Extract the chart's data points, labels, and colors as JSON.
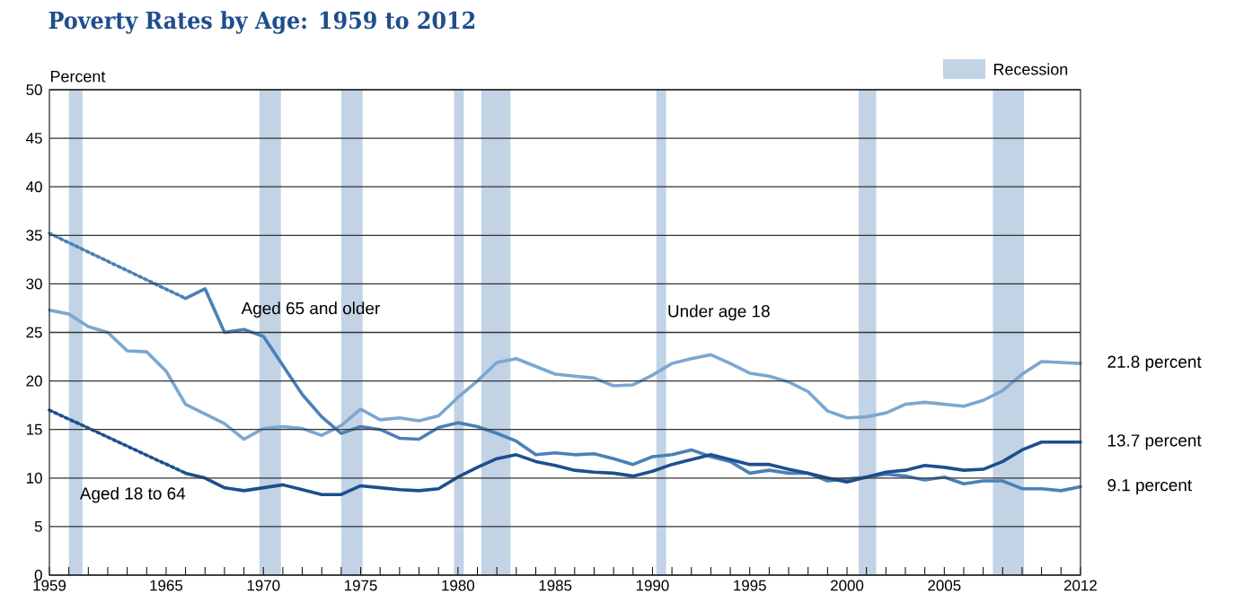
{
  "chart_data": {
    "type": "line",
    "title": "Poverty Rates by Age: 1959 to 2012",
    "ylabel": "Percent",
    "xlim": [
      1959,
      2012
    ],
    "ylim": [
      0,
      50
    ],
    "yticks": [
      0,
      5,
      10,
      15,
      20,
      25,
      30,
      35,
      40,
      45,
      50
    ],
    "xticks": [
      1959,
      {
        "value": 1960,
        "label": null
      },
      {
        "value": 1961,
        "label": null
      },
      {
        "value": 1962,
        "label": null
      },
      {
        "value": 1963,
        "label": null
      },
      {
        "value": 1964,
        "label": null
      },
      1965,
      {
        "value": 1966,
        "label": null
      },
      {
        "value": 1967,
        "label": null
      },
      {
        "value": 1968,
        "label": null
      },
      {
        "value": 1969,
        "label": null
      },
      1970,
      {
        "value": 1971,
        "label": null
      },
      {
        "value": 1972,
        "label": null
      },
      {
        "value": 1973,
        "label": null
      },
      {
        "value": 1974,
        "label": null
      },
      1975,
      {
        "value": 1976,
        "label": null
      },
      {
        "value": 1977,
        "label": null
      },
      {
        "value": 1978,
        "label": null
      },
      {
        "value": 1979,
        "label": null
      },
      1980,
      {
        "value": 1981,
        "label": null
      },
      {
        "value": 1982,
        "label": null
      },
      {
        "value": 1983,
        "label": null
      },
      {
        "value": 1984,
        "label": null
      },
      1985,
      {
        "value": 1986,
        "label": null
      },
      {
        "value": 1987,
        "label": null
      },
      {
        "value": 1988,
        "label": null
      },
      {
        "value": 1989,
        "label": null
      },
      1990,
      {
        "value": 1991,
        "label": null
      },
      {
        "value": 1992,
        "label": null
      },
      {
        "value": 1993,
        "label": null
      },
      {
        "value": 1994,
        "label": null
      },
      1995,
      {
        "value": 1996,
        "label": null
      },
      {
        "value": 1997,
        "label": null
      },
      {
        "value": 1998,
        "label": null
      },
      {
        "value": 1999,
        "label": null
      },
      2000,
      {
        "value": 2001,
        "label": null
      },
      {
        "value": 2002,
        "label": null
      },
      {
        "value": 2003,
        "label": null
      },
      {
        "value": 2004,
        "label": null
      },
      2005,
      {
        "value": 2006,
        "label": null
      },
      {
        "value": 2007,
        "label": null
      },
      {
        "value": 2008,
        "label": null
      },
      {
        "value": 2009,
        "label": null
      },
      {
        "value": 2010,
        "label": null
      },
      {
        "value": 2011,
        "label": null
      },
      2012
    ],
    "grid": "y",
    "legend": "top right",
    "line_style": "solid",
    "marker": "none",
    "series": [
      {
        "name": "Under age 18",
        "color": "#7ba7d1",
        "x": [
          1959,
          1960,
          1961,
          1962,
          1963,
          1964,
          1965,
          1966,
          1967,
          1968,
          1969,
          1970,
          1971,
          1972,
          1973,
          1974,
          1975,
          1976,
          1977,
          1978,
          1979,
          1980,
          1981,
          1982,
          1983,
          1984,
          1985,
          1986,
          1987,
          1988,
          1989,
          1990,
          1991,
          1992,
          1993,
          1994,
          1995,
          1996,
          1997,
          1998,
          1999,
          2000,
          2001,
          2002,
          2003,
          2004,
          2005,
          2006,
          2007,
          2008,
          2009,
          2010,
          2011,
          2012
        ],
        "values": [
          27.3,
          26.9,
          25.6,
          25.0,
          23.1,
          23.0,
          21.0,
          17.6,
          16.6,
          15.6,
          14.0,
          15.1,
          15.3,
          15.1,
          14.4,
          15.4,
          17.1,
          16.0,
          16.2,
          15.9,
          16.4,
          18.3,
          20.0,
          21.9,
          22.3,
          21.5,
          20.7,
          20.5,
          20.3,
          19.5,
          19.6,
          20.6,
          21.8,
          22.3,
          22.7,
          21.8,
          20.8,
          20.5,
          19.9,
          18.9,
          16.9,
          16.2,
          16.3,
          16.7,
          17.6,
          17.8,
          17.6,
          17.4,
          18.0,
          19.0,
          20.7,
          22.0,
          21.9,
          21.8
        ]
      },
      {
        "name": "Aged 65 and older",
        "color": "#4b80b8",
        "x": [
          1966,
          1967,
          1968,
          1969,
          1970,
          1971,
          1972,
          1973,
          1974,
          1975,
          1976,
          1977,
          1978,
          1979,
          1980,
          1981,
          1982,
          1983,
          1984,
          1985,
          1986,
          1987,
          1988,
          1989,
          1990,
          1991,
          1992,
          1993,
          1994,
          1995,
          1996,
          1997,
          1998,
          1999,
          2000,
          2001,
          2002,
          2003,
          2004,
          2005,
          2006,
          2007,
          2008,
          2009,
          2010,
          2011,
          2012
        ],
        "values": [
          28.5,
          29.5,
          25.0,
          25.3,
          24.6,
          21.6,
          18.6,
          16.3,
          14.6,
          15.3,
          15.0,
          14.1,
          14.0,
          15.2,
          15.7,
          15.3,
          14.6,
          13.8,
          12.4,
          12.6,
          12.4,
          12.5,
          12.0,
          11.4,
          12.2,
          12.4,
          12.9,
          12.2,
          11.7,
          10.5,
          10.8,
          10.5,
          10.5,
          9.7,
          9.9,
          10.1,
          10.4,
          10.2,
          9.8,
          10.1,
          9.4,
          9.7,
          9.7,
          8.9,
          8.9,
          8.7,
          9.1
        ]
      },
      {
        "color": "#4b80b8",
        "line_style": "dotted",
        "x": [
          1959,
          1966
        ],
        "values": [
          35.2,
          28.5
        ]
      },
      {
        "name": "Aged 18 to 64",
        "color": "#1c4f8e",
        "x": [
          1966,
          1967,
          1968,
          1969,
          1970,
          1971,
          1972,
          1973,
          1974,
          1975,
          1976,
          1977,
          1978,
          1979,
          1980,
          1981,
          1982,
          1983,
          1984,
          1985,
          1986,
          1987,
          1988,
          1989,
          1990,
          1991,
          1992,
          1993,
          1994,
          1995,
          1996,
          1997,
          1998,
          1999,
          2000,
          2001,
          2002,
          2003,
          2004,
          2005,
          2006,
          2007,
          2008,
          2009,
          2010,
          2011,
          2012
        ],
        "values": [
          10.5,
          10.0,
          9.0,
          8.7,
          9.0,
          9.3,
          8.8,
          8.3,
          8.3,
          9.2,
          9.0,
          8.8,
          8.7,
          8.9,
          10.1,
          11.1,
          12.0,
          12.4,
          11.7,
          11.3,
          10.8,
          10.6,
          10.5,
          10.2,
          10.7,
          11.4,
          11.9,
          12.4,
          11.9,
          11.4,
          11.4,
          10.9,
          10.5,
          10.0,
          9.6,
          10.1,
          10.6,
          10.8,
          11.3,
          11.1,
          10.8,
          10.9,
          11.7,
          12.9,
          13.7,
          13.7,
          13.7
        ]
      },
      {
        "color": "#1c4f8e",
        "line_style": "dotted",
        "x": [
          1959,
          1966
        ],
        "values": [
          17.0,
          10.5
        ]
      }
    ],
    "bands": [
      {
        "axis": "x",
        "from": 1960.0,
        "to": 1960.7,
        "label": "Recession",
        "color": "#c1d3e5"
      },
      {
        "axis": "x",
        "from": 1969.8,
        "to": 1970.9,
        "color": "#c1d3e5"
      },
      {
        "axis": "x",
        "from": 1974.0,
        "to": 1975.1,
        "color": "#c1d3e5"
      },
      {
        "axis": "x",
        "from": 1979.8,
        "to": 1980.3,
        "color": "#c1d3e5"
      },
      {
        "axis": "x",
        "from": 1981.2,
        "to": 1982.7,
        "color": "#c1d3e5"
      },
      {
        "axis": "x",
        "from": 1990.2,
        "to": 1990.7,
        "color": "#c1d3e5"
      },
      {
        "axis": "x",
        "from": 2000.6,
        "to": 2001.5,
        "color": "#c1d3e5"
      },
      {
        "axis": "x",
        "from": 2007.5,
        "to": 2009.1,
        "color": "#c1d3e5"
      }
    ],
    "annotations": [
      "21.8 percent",
      "13.7 percent",
      "9.1 percent"
    ]
  }
}
